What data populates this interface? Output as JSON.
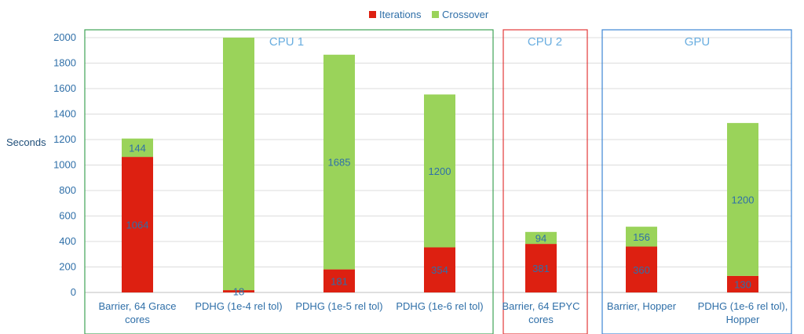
{
  "chart_data": {
    "type": "stacked-bar",
    "ylabel": "Seconds",
    "ylim": [
      0,
      2000
    ],
    "yticks": [
      0,
      200,
      400,
      600,
      800,
      1000,
      1200,
      1400,
      1600,
      1800,
      2000
    ],
    "grid": true,
    "legend_position": "top-center",
    "categories": [
      [
        "Barrier, 64 Grace",
        "cores"
      ],
      [
        "PDHG (1e-4 rel tol)"
      ],
      [
        "PDHG (1e-5 rel tol)"
      ],
      [
        "PDHG (1e-6 rel tol)"
      ],
      [
        "Barrier, 64 EPYC",
        "cores"
      ],
      [
        "Barrier, Hopper"
      ],
      [
        "PDHG (1e-6 rel tol),",
        "Hopper"
      ]
    ],
    "series": [
      {
        "name": "Iterations",
        "color": "#dd2011",
        "values": [
          1064,
          18,
          181,
          354,
          381,
          360,
          130
        ],
        "labels": [
          "1064",
          "18",
          "181",
          "354",
          "381",
          "360",
          "130"
        ]
      },
      {
        "name": "Crossover",
        "color": "#9ad35a",
        "values": [
          144,
          1982,
          1685,
          1200,
          94,
          156,
          1200
        ],
        "labels": [
          "144",
          "",
          "1685",
          "1200",
          "94",
          "156",
          "1200"
        ]
      }
    ],
    "groups": [
      {
        "name": "CPU 1",
        "start": 0,
        "end": 3,
        "color": "#3fa456"
      },
      {
        "name": "CPU 2",
        "start": 4,
        "end": 4,
        "color": "#e23a3a"
      },
      {
        "name": "GPU",
        "start": 5,
        "end": 6,
        "color": "#3d86d4"
      }
    ]
  }
}
